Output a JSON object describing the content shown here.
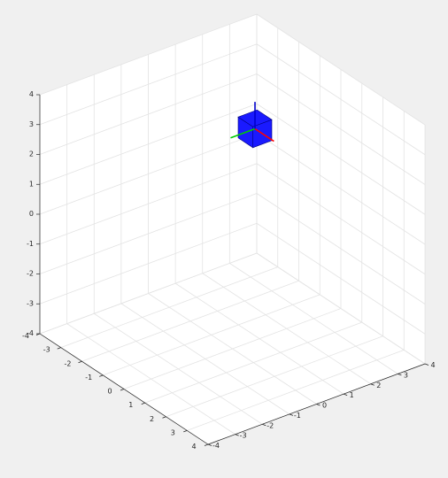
{
  "chart_data": {
    "type": "scatter3d",
    "title": "",
    "xlabel": "",
    "ylabel": "",
    "zlabel": "",
    "grid": true,
    "view": "isometric",
    "xlim": [
      -4,
      4
    ],
    "ylim": [
      -4,
      4
    ],
    "zlim": [
      -4,
      4
    ],
    "x_ticks": [
      "-4",
      "-3",
      "-2",
      "-1",
      "0",
      "1",
      "2",
      "3",
      "4"
    ],
    "y_ticks": [
      "-4",
      "-3",
      "-2",
      "-1",
      "0",
      "1",
      "2",
      "3",
      "4"
    ],
    "z_ticks": [
      "-4",
      "-3",
      "-2",
      "-1",
      "0",
      "1",
      "2",
      "3",
      "4"
    ],
    "objects": [
      {
        "name": "cube",
        "shape": "cube",
        "center": [
          0.3,
          0.6,
          3.3
        ],
        "size": 0.7,
        "color": "#1a1aff",
        "edge_color": "#000080"
      },
      {
        "name": "body-frame-axes",
        "origin": [
          0.3,
          0.6,
          3.3
        ],
        "axes": [
          {
            "name": "x-axis",
            "direction": [
              1,
              0,
              0
            ],
            "length": 0.9,
            "color": "#ff0000"
          },
          {
            "name": "y-axis",
            "direction": [
              0,
              -1,
              0
            ],
            "length": 0.9,
            "color": "#00cc00"
          },
          {
            "name": "z-axis",
            "direction": [
              0,
              0,
              1
            ],
            "length": 0.9,
            "color": "#0000cc"
          }
        ]
      }
    ]
  },
  "colors": {
    "background": "#f0f0f0",
    "axes_face": "#ffffff",
    "grid": "#e3e3e3",
    "axis_line": "#262626"
  }
}
